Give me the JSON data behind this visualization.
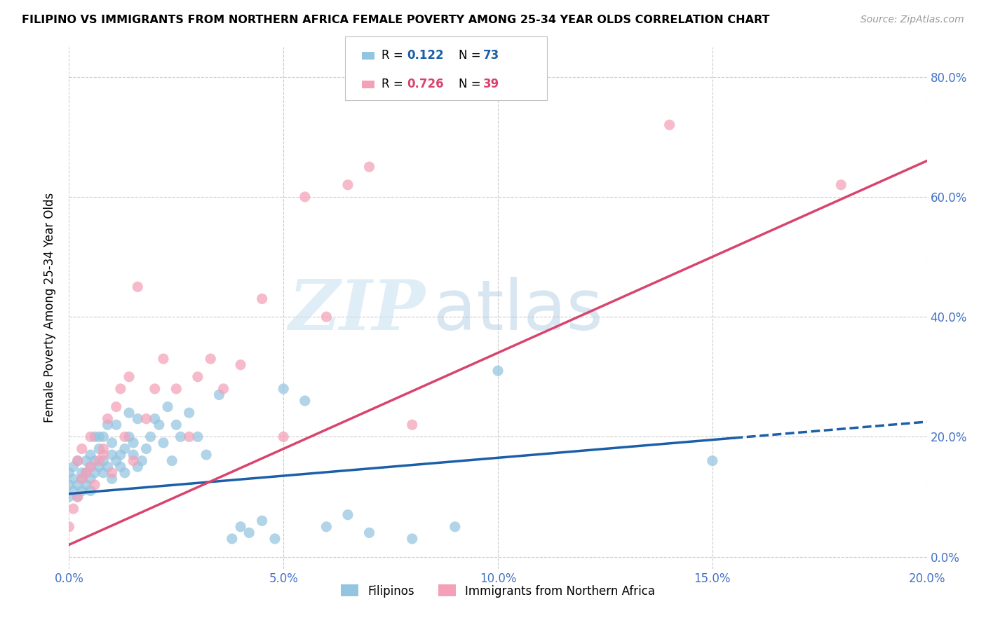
{
  "title": "FILIPINO VS IMMIGRANTS FROM NORTHERN AFRICA FEMALE POVERTY AMONG 25-34 YEAR OLDS CORRELATION CHART",
  "source": "Source: ZipAtlas.com",
  "ylabel": "Female Poverty Among 25-34 Year Olds",
  "xlim": [
    0.0,
    0.2
  ],
  "ylim": [
    -0.02,
    0.85
  ],
  "yticks": [
    0.0,
    0.2,
    0.4,
    0.6,
    0.8
  ],
  "xticks": [
    0.0,
    0.05,
    0.1,
    0.15,
    0.2
  ],
  "legend_r1_val": "0.122",
  "legend_n1_val": "73",
  "legend_r2_val": "0.726",
  "legend_n2_val": "39",
  "legend_label1": "Filipinos",
  "legend_label2": "Immigrants from Northern Africa",
  "color_blue": "#93c4e0",
  "color_pink": "#f4a0b8",
  "line_blue": "#1a5fa8",
  "line_pink": "#d9446e",
  "filipino_x": [
    0.0,
    0.0,
    0.0,
    0.001,
    0.001,
    0.001,
    0.002,
    0.002,
    0.002,
    0.003,
    0.003,
    0.003,
    0.004,
    0.004,
    0.004,
    0.005,
    0.005,
    0.005,
    0.005,
    0.006,
    0.006,
    0.006,
    0.007,
    0.007,
    0.007,
    0.008,
    0.008,
    0.008,
    0.009,
    0.009,
    0.01,
    0.01,
    0.01,
    0.011,
    0.011,
    0.012,
    0.012,
    0.013,
    0.013,
    0.014,
    0.014,
    0.015,
    0.015,
    0.016,
    0.016,
    0.017,
    0.018,
    0.019,
    0.02,
    0.021,
    0.022,
    0.023,
    0.024,
    0.025,
    0.026,
    0.028,
    0.03,
    0.032,
    0.035,
    0.038,
    0.04,
    0.042,
    0.045,
    0.048,
    0.05,
    0.055,
    0.06,
    0.065,
    0.07,
    0.08,
    0.09,
    0.1,
    0.15
  ],
  "filipino_y": [
    0.12,
    0.1,
    0.14,
    0.13,
    0.11,
    0.15,
    0.12,
    0.1,
    0.16,
    0.13,
    0.11,
    0.14,
    0.14,
    0.12,
    0.16,
    0.15,
    0.13,
    0.17,
    0.11,
    0.16,
    0.14,
    0.2,
    0.15,
    0.18,
    0.2,
    0.14,
    0.16,
    0.2,
    0.15,
    0.22,
    0.17,
    0.19,
    0.13,
    0.16,
    0.22,
    0.15,
    0.17,
    0.18,
    0.14,
    0.2,
    0.24,
    0.19,
    0.17,
    0.23,
    0.15,
    0.16,
    0.18,
    0.2,
    0.23,
    0.22,
    0.19,
    0.25,
    0.16,
    0.22,
    0.2,
    0.24,
    0.2,
    0.17,
    0.27,
    0.03,
    0.05,
    0.04,
    0.06,
    0.03,
    0.28,
    0.26,
    0.05,
    0.07,
    0.04,
    0.03,
    0.05,
    0.31,
    0.16
  ],
  "northern_africa_x": [
    0.0,
    0.001,
    0.002,
    0.002,
    0.003,
    0.003,
    0.004,
    0.005,
    0.005,
    0.006,
    0.007,
    0.008,
    0.008,
    0.009,
    0.01,
    0.011,
    0.012,
    0.013,
    0.014,
    0.015,
    0.016,
    0.018,
    0.02,
    0.022,
    0.025,
    0.028,
    0.03,
    0.033,
    0.036,
    0.04,
    0.045,
    0.05,
    0.055,
    0.06,
    0.065,
    0.07,
    0.08,
    0.14,
    0.18
  ],
  "northern_africa_y": [
    0.05,
    0.08,
    0.1,
    0.16,
    0.13,
    0.18,
    0.14,
    0.15,
    0.2,
    0.12,
    0.16,
    0.18,
    0.17,
    0.23,
    0.14,
    0.25,
    0.28,
    0.2,
    0.3,
    0.16,
    0.45,
    0.23,
    0.28,
    0.33,
    0.28,
    0.2,
    0.3,
    0.33,
    0.28,
    0.32,
    0.43,
    0.2,
    0.6,
    0.4,
    0.62,
    0.65,
    0.22,
    0.72,
    0.62
  ],
  "fil_line_slope": 0.6,
  "fil_line_intercept": 0.105,
  "na_line_slope": 3.2,
  "na_line_intercept": 0.02
}
